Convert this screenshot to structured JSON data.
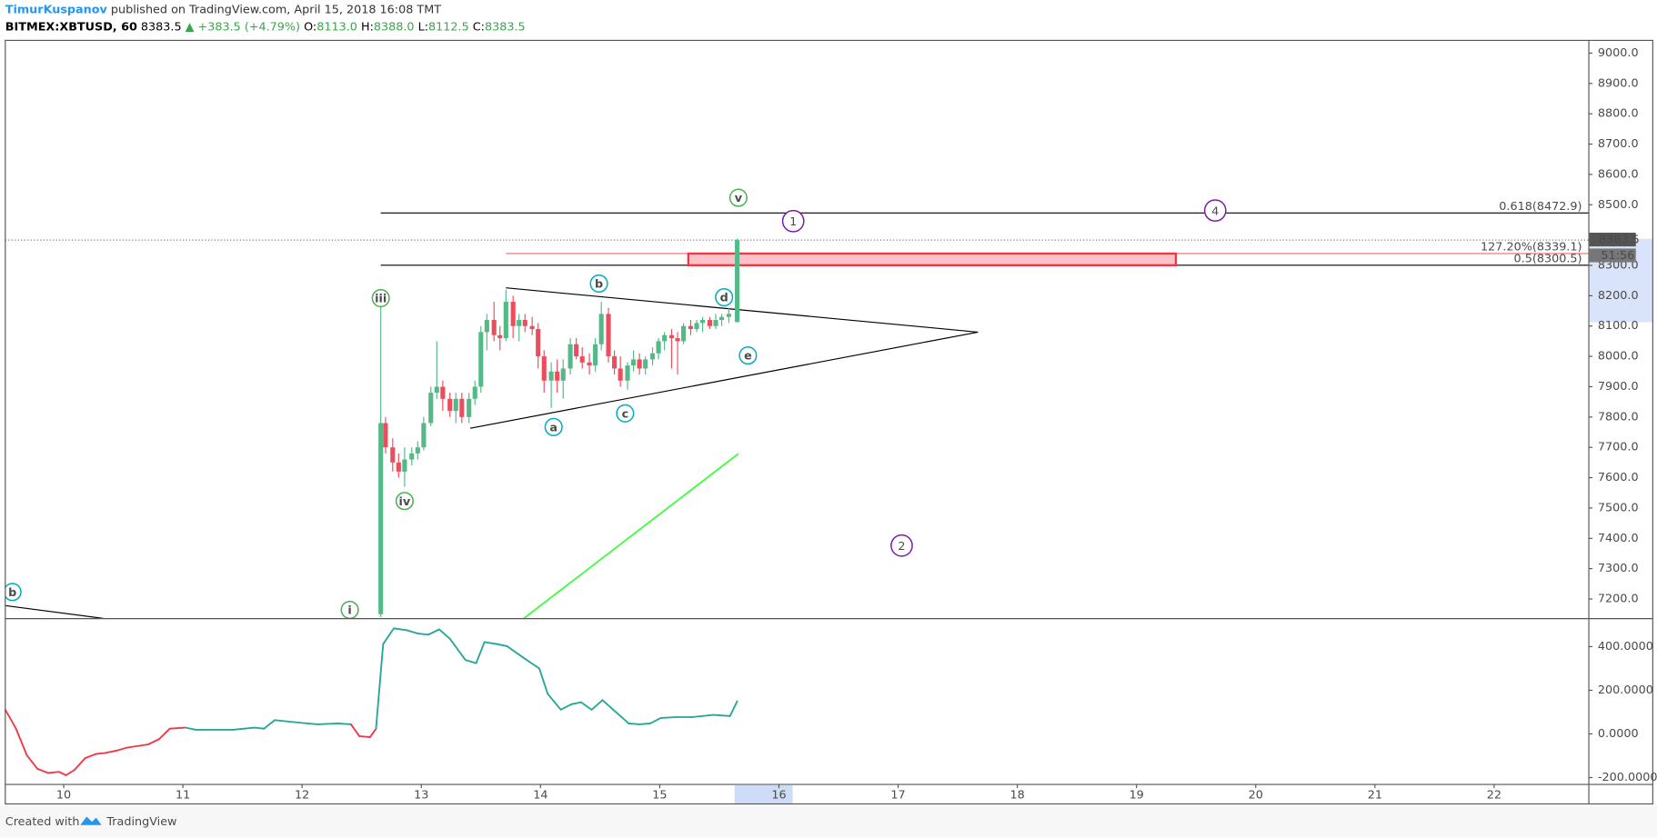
{
  "header": {
    "author": "TimurKuspanov",
    "published": "published on TradingView.com, April 15, 2018 16:08 TMT",
    "symbol": "BITMEX:XBTUSD, 60",
    "last": "8383.5",
    "change": "▲ +383.5 (+4.79%)",
    "ohlc": [
      {
        "key": "O:",
        "value": "8113.0"
      },
      {
        "key": "H:",
        "value": "8388.0"
      },
      {
        "key": "L:",
        "value": "8112.5"
      },
      {
        "key": "C:",
        "value": "8383.5"
      }
    ]
  },
  "chart_data": [
    {
      "type": "candlestick",
      "up_color": "#53b987",
      "down_color": "#eb4d5c",
      "xlim": [
        9.51,
        22.79
      ],
      "xticks": [
        10,
        11,
        12,
        13,
        14,
        15,
        16,
        17,
        18,
        19,
        20,
        21,
        22
      ],
      "ylim": [
        7137,
        9042
      ],
      "yticks": [
        {
          "value": 7200,
          "label": "7200.0"
        },
        {
          "value": 7300,
          "label": "7300.0"
        },
        {
          "value": 7400,
          "label": "7400.0"
        },
        {
          "value": 7500,
          "label": "7500.0"
        },
        {
          "value": 7600,
          "label": "7600.0"
        },
        {
          "value": 7700,
          "label": "7700.0"
        },
        {
          "value": 7800,
          "label": "7800.0"
        },
        {
          "value": 7900,
          "label": "7900.0"
        },
        {
          "value": 8000,
          "label": "8000.0"
        },
        {
          "value": 8100,
          "label": "8100.0"
        },
        {
          "value": 8200,
          "label": "8200.0"
        },
        {
          "value": 8300,
          "label": "8300.0"
        },
        {
          "value": 8500,
          "label": "8500.0"
        },
        {
          "value": 8600,
          "label": "8600.0"
        },
        {
          "value": 8700,
          "label": "8700.0"
        },
        {
          "value": 8800,
          "label": "8800.0"
        },
        {
          "value": 8900,
          "label": "8900.0"
        },
        {
          "value": 9000,
          "label": "9000.0"
        }
      ],
      "x": [
        12.66,
        12.7,
        12.76,
        12.81,
        12.86,
        12.92,
        12.97,
        13.02,
        13.08,
        13.13,
        13.18,
        13.24,
        13.29,
        13.34,
        13.4,
        13.45,
        13.5,
        13.55,
        13.61,
        13.66,
        13.71,
        13.77,
        13.82,
        13.87,
        13.93,
        13.98,
        14.03,
        14.09,
        14.14,
        14.19,
        14.25,
        14.3,
        14.35,
        14.41,
        14.46,
        14.51,
        14.57,
        14.62,
        14.67,
        14.73,
        14.78,
        14.83,
        14.88,
        14.94,
        14.99,
        15.04,
        15.1,
        15.15,
        15.2,
        15.26,
        15.31,
        15.36,
        15.42,
        15.47,
        15.52,
        15.58,
        15.65
      ],
      "open": [
        7150,
        7780,
        7700,
        7650,
        7620,
        7660,
        7680,
        7700,
        7780,
        7880,
        7900,
        7860,
        7820,
        7860,
        7800,
        7860,
        7900,
        8080,
        8120,
        8070,
        8060,
        8180,
        8100,
        8120,
        8100,
        8090,
        8000,
        7920,
        7950,
        7920,
        7960,
        8040,
        8000,
        7980,
        7970,
        8040,
        8140,
        8000,
        7960,
        7920,
        7970,
        7990,
        7960,
        7990,
        8010,
        8050,
        8070,
        8060,
        8050,
        8100,
        8090,
        8110,
        8120,
        8100,
        8120,
        8130,
        8113
      ],
      "high": [
        8180,
        7800,
        7730,
        7680,
        7700,
        7700,
        7720,
        7800,
        7900,
        8050,
        7920,
        7880,
        7880,
        7880,
        7880,
        7920,
        8100,
        8140,
        8180,
        8100,
        8220,
        8200,
        8140,
        8140,
        8130,
        8110,
        8020,
        7980,
        7990,
        7990,
        8060,
        8060,
        8030,
        8010,
        8060,
        8180,
        8160,
        8020,
        8000,
        7980,
        8020,
        8010,
        8000,
        8030,
        8060,
        8080,
        8090,
        8080,
        8110,
        8120,
        8120,
        8130,
        8130,
        8140,
        8140,
        8160,
        8388
      ],
      "low": [
        7140,
        7680,
        7620,
        7600,
        7570,
        7640,
        7660,
        7690,
        7770,
        7860,
        7820,
        7800,
        7780,
        7780,
        7780,
        7840,
        7880,
        8020,
        8050,
        8020,
        8050,
        8060,
        8050,
        8080,
        8070,
        7960,
        7880,
        7830,
        7880,
        7860,
        7940,
        7990,
        7960,
        7940,
        7950,
        8020,
        7980,
        7940,
        7900,
        7890,
        7950,
        7940,
        7940,
        7970,
        7990,
        8020,
        7960,
        7940,
        8040,
        8070,
        8080,
        8080,
        8090,
        8090,
        8100,
        8110,
        8112.5
      ],
      "close": [
        7780,
        7700,
        7650,
        7620,
        7660,
        7680,
        7700,
        7780,
        7880,
        7900,
        7860,
        7820,
        7860,
        7800,
        7860,
        7900,
        8080,
        8120,
        8070,
        8060,
        8180,
        8100,
        8120,
        8100,
        8090,
        8000,
        7920,
        7950,
        7920,
        7960,
        8040,
        8000,
        7980,
        7970,
        8040,
        8140,
        8000,
        7960,
        7920,
        7970,
        7990,
        7960,
        7990,
        8010,
        8050,
        8070,
        8060,
        8050,
        8100,
        8090,
        8110,
        8120,
        8100,
        8120,
        8130,
        8140,
        8383.5
      ],
      "countdown": "51:56",
      "levels": [
        {
          "label": "0.618(8472.9)",
          "value": 8472.9,
          "from": 12.66,
          "color": "#000000"
        },
        {
          "label": "127.20%(8339.1)",
          "value": 8339.1,
          "from": 13.71,
          "color": "#f06a6a"
        },
        {
          "label": "0.5(8300.5)",
          "value": 8300.5,
          "from": 12.66,
          "color": "#000000"
        }
      ],
      "zone": {
        "x": [
          15.24,
          19.33
        ],
        "color": "#f23645"
      },
      "trendlines": [
        {
          "x": [
            13.71,
            17.67
          ],
          "y": [
            8226,
            8080
          ],
          "color": "#000000"
        },
        {
          "x": [
            13.41,
            17.67
          ],
          "y": [
            7763,
            8080
          ],
          "color": "#000000"
        },
        {
          "x": [
            9.51,
            10.33
          ],
          "y": [
            7178,
            7136
          ],
          "color": "#000000"
        },
        {
          "x": [
            13.86,
            15.66
          ],
          "y": [
            7136,
            7679
          ],
          "color": "#39ff39"
        }
      ],
      "waves": [
        {
          "label": "iii",
          "x": 12.66,
          "y": 8192,
          "color": "#4caf50"
        },
        {
          "label": "iv",
          "x": 12.86,
          "y": 7523,
          "color": "#4caf50"
        },
        {
          "label": "i",
          "x": 12.4,
          "y": 7164,
          "color": "#4caf50"
        },
        {
          "label": "v",
          "x": 15.66,
          "y": 8523,
          "color": "#4caf50"
        },
        {
          "label": "a",
          "x": 14.11,
          "y": 7767,
          "color": "#00acc1"
        },
        {
          "label": "b",
          "x": 14.49,
          "y": 8240,
          "color": "#00acc1"
        },
        {
          "label": "c",
          "x": 14.71,
          "y": 7812,
          "color": "#00acc1"
        },
        {
          "label": "d",
          "x": 15.54,
          "y": 8195,
          "color": "#00acc1"
        },
        {
          "label": "e",
          "x": 15.74,
          "y": 8003,
          "color": "#00acc1"
        },
        {
          "label": "b",
          "x": 9.57,
          "y": 7223,
          "color": "#00acc1"
        },
        {
          "label": "1",
          "x": 16.12,
          "y": 8446,
          "color": "#7b1fa2"
        },
        {
          "label": "2",
          "x": 17.03,
          "y": 7376,
          "color": "#7b1fa2"
        },
        {
          "label": "4",
          "x": 19.66,
          "y": 8481,
          "color": "#7b1fa2"
        }
      ]
    },
    {
      "type": "line",
      "color": "#26a69a",
      "negative_color": "#f23645",
      "xlim": [
        9.51,
        22.79
      ],
      "ylim": [
        -229,
        526
      ],
      "yticks": [
        {
          "value": -200,
          "label": "-200.0000"
        },
        {
          "value": 0,
          "label": "0.0000"
        },
        {
          "value": 200,
          "label": "200.0000"
        },
        {
          "value": 400,
          "label": "400.0000"
        }
      ],
      "x": [
        9.51,
        9.6,
        9.69,
        9.78,
        9.87,
        9.96,
        10.02,
        10.09,
        10.18,
        10.27,
        10.35,
        10.44,
        10.53,
        10.71,
        10.8,
        10.89,
        11.02,
        11.11,
        11.24,
        11.42,
        11.6,
        11.68,
        11.77,
        11.95,
        12.13,
        12.3,
        12.41,
        12.48,
        12.57,
        12.62,
        12.68,
        12.77,
        12.88,
        12.97,
        13.06,
        13.15,
        13.24,
        13.37,
        13.46,
        13.53,
        13.63,
        13.72,
        13.86,
        13.99,
        14.06,
        14.17,
        14.26,
        14.34,
        14.43,
        14.52,
        14.61,
        14.74,
        14.83,
        14.92,
        15.01,
        15.14,
        15.27,
        15.45,
        15.59,
        15.65
      ],
      "values": [
        111,
        24,
        -97,
        -160,
        -179,
        -174,
        -189,
        -165,
        -111,
        -92,
        -87,
        -77,
        -63,
        -48,
        -24,
        24,
        29,
        19,
        19,
        19,
        29,
        24,
        63,
        53,
        44,
        48,
        44,
        -10,
        -15,
        24,
        412,
        484,
        475,
        460,
        455,
        479,
        436,
        339,
        324,
        421,
        412,
        402,
        348,
        300,
        184,
        111,
        136,
        145,
        111,
        155,
        111,
        48,
        44,
        48,
        73,
        77,
        77,
        87,
        82,
        150
      ]
    }
  ],
  "footer": {
    "created": "Created with",
    "brand": "TradingView"
  }
}
